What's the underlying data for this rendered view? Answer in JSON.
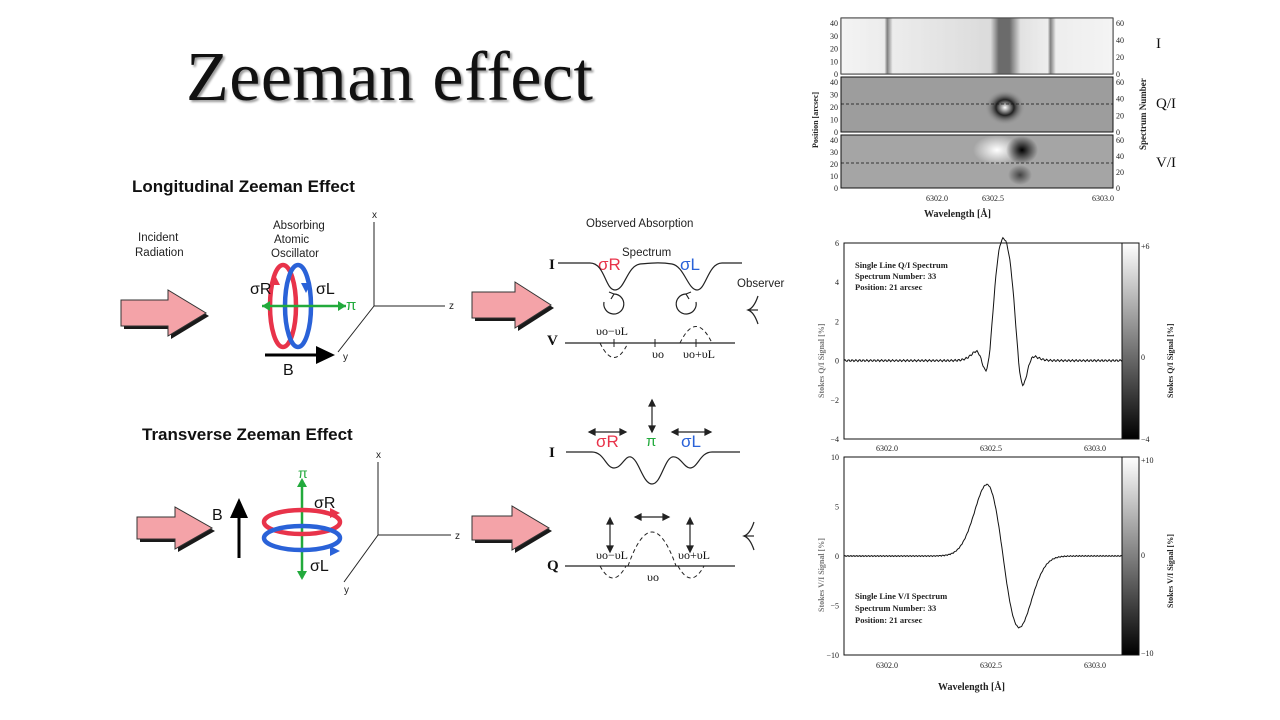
{
  "slide": {
    "title": "Zeeman effect"
  },
  "colors": {
    "arrow_fill": "#f4a3a8",
    "arrow_shadow": "#1a1a1a",
    "sigma_r": "#e8334a",
    "sigma_l": "#2a62d8",
    "pi": "#22aa3c"
  },
  "longitudinal": {
    "heading": "Longitudinal Zeeman Effect",
    "incident_l1": "Incident",
    "incident_l2": "Radiation",
    "osc_l1": "Absorbing",
    "osc_l2": "Atomic",
    "osc_l3": "Oscillator",
    "sigma_r": "σR",
    "sigma_l": "σL",
    "pi": "π",
    "field": "B",
    "axis_x": "x",
    "axis_y": "y",
    "axis_z": "z",
    "obs_heading": "Observed Absorption",
    "spectrum": "Spectrum",
    "observer": "Observer",
    "I": "I",
    "V": "V",
    "nu_minus": "υo−υL",
    "nu_0": "υo",
    "nu_plus": "υo+υL"
  },
  "transverse": {
    "heading": "Transverse Zeeman Effect",
    "field": "B",
    "pi": "π",
    "sigma_r": "σR",
    "sigma_l": "σL",
    "axis_x": "x",
    "axis_y": "y",
    "axis_z": "z",
    "I": "I",
    "Q": "Q",
    "nu_minus": "υo−υL",
    "nu_0": "υo",
    "nu_plus": "υo+υL"
  },
  "panel_top": {
    "label_I": "I",
    "label_Q": "Q/I",
    "label_V": "V/I",
    "ylabel": "Position [arcsec]",
    "ylabel_right": "Spectrum Number",
    "ticks_left": [
      "0",
      "10",
      "20",
      "30",
      "40"
    ],
    "ticks_right": [
      "0",
      "20",
      "40",
      "60"
    ],
    "xticks": [
      "6302.0",
      "6302.5",
      "6303.0"
    ],
    "xlabel": "Wavelength [Å]"
  },
  "panel_q": {
    "legend_l1": "Single Line Q/I Spectrum",
    "legend_l2": "Spectrum Number: 33",
    "legend_l3": "Position: 21 arcsec",
    "yticks": [
      "6",
      "4",
      "2",
      "0",
      "−2",
      "−4"
    ],
    "xticks": [
      "6302.0",
      "6302.5",
      "6303.0"
    ],
    "ylabel": "Stokes Q/I Signal [%]",
    "ylabel_right": "Stokes Q/I Signal [%]",
    "cb_top": "+6",
    "cb_mid": "0",
    "cb_bot": "−4"
  },
  "panel_v": {
    "legend_l1": "Single Line V/I Spectrum",
    "legend_l2": "Spectrum Number: 33",
    "legend_l3": "Position: 21 arcsec",
    "yticks": [
      "10",
      "5",
      "0",
      "−5",
      "−10"
    ],
    "xticks": [
      "6302.0",
      "6302.5",
      "6303.0"
    ],
    "ylabel": "Stokes V/I Signal [%]",
    "ylabel_right": "Stokes V/I Signal [%]",
    "cb_top": "+10",
    "cb_mid": "0",
    "cb_bot": "−10",
    "xlabel": "Wavelength [Å]"
  }
}
